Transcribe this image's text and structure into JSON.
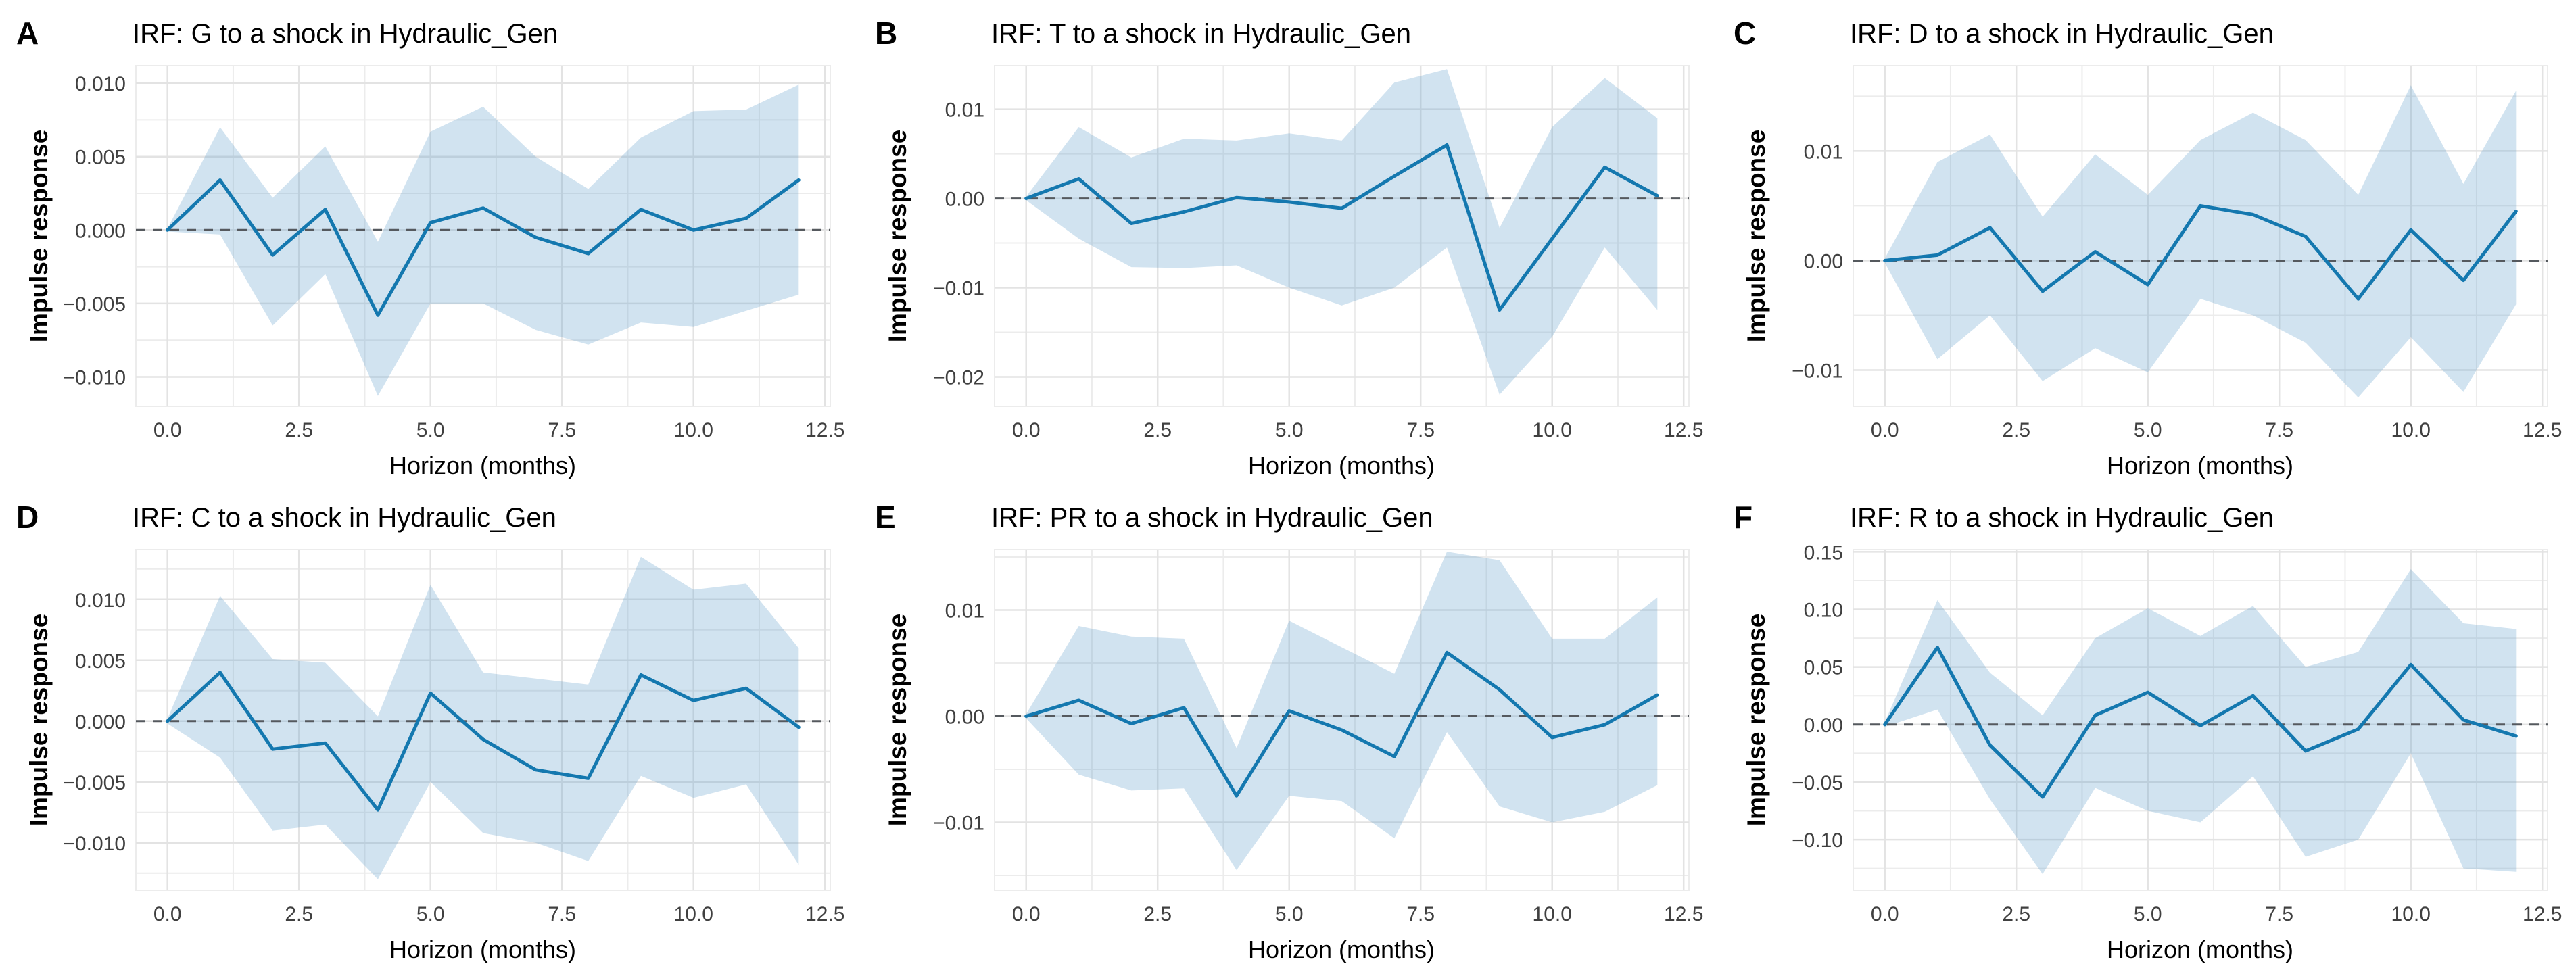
{
  "style": {
    "line_color": "#1478af",
    "line_width": 5,
    "band_color": "#5b9bc8",
    "band_opacity": 0.28,
    "grid_major_color": "#e3e3e3",
    "grid_minor_color": "#ececec",
    "panel_edge_color": "#ececec",
    "zero_line_color": "#55595e",
    "zero_dash": "14 11",
    "tick_label_color": "#404040",
    "title_color": "#000000",
    "background": "#ffffff"
  },
  "chart_data": [
    {
      "type": "line",
      "panel_label": "A",
      "title": "IRF: G to a shock in Hydraulic_Gen",
      "xlabel": "Horizon (months)",
      "ylabel": "Impulse response",
      "legend": "none",
      "grid": true,
      "zero_line": true,
      "x": [
        0,
        1,
        2,
        3,
        4,
        5,
        6,
        7,
        8,
        9,
        10,
        11,
        12
      ],
      "line": [
        0.0,
        0.0034,
        -0.0017,
        0.0014,
        -0.0058,
        0.0005,
        0.0015,
        -0.0005,
        -0.0016,
        0.0014,
        0.0,
        0.0008,
        0.0034
      ],
      "band_upper": [
        0.0001,
        0.007,
        0.0022,
        0.0057,
        -0.0008,
        0.0067,
        0.0084,
        0.005,
        0.0028,
        0.0063,
        0.0081,
        0.0082,
        0.0099
      ],
      "band_lower": [
        -0.0001,
        -0.0003,
        -0.0065,
        -0.003,
        -0.0113,
        -0.005,
        -0.005,
        -0.0068,
        -0.0078,
        -0.0063,
        -0.0066,
        -0.0055,
        -0.0044
      ],
      "xlim": [
        -0.6,
        12.6
      ],
      "ylim": [
        -0.012,
        0.0112
      ],
      "x_ticks": {
        "values": [
          0,
          2.5,
          5,
          7.5,
          10,
          12.5
        ],
        "labels": [
          "0.0",
          "2.5",
          "5.0",
          "7.5",
          "10.0",
          "12.5"
        ]
      },
      "y_ticks": {
        "values": [
          0.01,
          0.005,
          0.0,
          -0.005,
          -0.01
        ],
        "labels": [
          "0.010",
          "0.005",
          "0.000",
          "−0.005",
          "−0.010"
        ]
      }
    },
    {
      "type": "line",
      "panel_label": "B",
      "title": "IRF: T to a shock in Hydraulic_Gen",
      "xlabel": "Horizon (months)",
      "ylabel": "Impulse response",
      "legend": "none",
      "grid": true,
      "zero_line": true,
      "x": [
        0,
        1,
        2,
        3,
        4,
        5,
        6,
        7,
        8,
        9,
        10,
        11,
        12
      ],
      "line": [
        0.0,
        0.0022,
        -0.0028,
        -0.0015,
        0.0001,
        -0.0004,
        -0.0011,
        0.0025,
        0.006,
        -0.0125,
        -0.0045,
        0.0035,
        0.0003
      ],
      "band_upper": [
        0.0002,
        0.008,
        0.0046,
        0.0067,
        0.0065,
        0.0073,
        0.0065,
        0.013,
        0.0145,
        -0.0033,
        0.008,
        0.0135,
        0.009
      ],
      "band_lower": [
        -0.0002,
        -0.0045,
        -0.0077,
        -0.0078,
        -0.0075,
        -0.01,
        -0.012,
        -0.01,
        -0.0055,
        -0.022,
        -0.0155,
        -0.0055,
        -0.0125
      ],
      "xlim": [
        -0.6,
        12.6
      ],
      "ylim": [
        -0.0233,
        0.0149
      ],
      "x_ticks": {
        "values": [
          0,
          2.5,
          5,
          7.5,
          10,
          12.5
        ],
        "labels": [
          "0.0",
          "2.5",
          "5.0",
          "7.5",
          "10.0",
          "12.5"
        ]
      },
      "y_ticks": {
        "values": [
          0.01,
          0.0,
          -0.01,
          -0.02
        ],
        "labels": [
          "0.01",
          "0.00",
          "−0.01",
          "−0.02"
        ]
      }
    },
    {
      "type": "line",
      "panel_label": "C",
      "title": "IRF: D to a shock in Hydraulic_Gen",
      "xlabel": "Horizon (months)",
      "ylabel": "Impulse response",
      "legend": "none",
      "grid": true,
      "zero_line": true,
      "x": [
        0,
        1,
        2,
        3,
        4,
        5,
        6,
        7,
        8,
        9,
        10,
        11,
        12
      ],
      "line": [
        0.0,
        0.0005,
        0.003,
        -0.0028,
        0.0008,
        -0.0022,
        0.005,
        0.0042,
        0.0022,
        -0.0035,
        0.0028,
        -0.0018,
        0.0045
      ],
      "band_upper": [
        0.0002,
        0.009,
        0.0115,
        0.004,
        0.0097,
        0.006,
        0.011,
        0.0135,
        0.011,
        0.006,
        0.016,
        0.007,
        0.0155
      ],
      "band_lower": [
        -0.0002,
        -0.009,
        -0.005,
        -0.011,
        -0.008,
        -0.0102,
        -0.0035,
        -0.005,
        -0.0075,
        -0.0125,
        -0.007,
        -0.012,
        -0.004
      ],
      "xlim": [
        -0.6,
        12.6
      ],
      "ylim": [
        -0.0133,
        0.0178
      ],
      "x_ticks": {
        "values": [
          0,
          2.5,
          5,
          7.5,
          10,
          12.5
        ],
        "labels": [
          "0.0",
          "2.5",
          "5.0",
          "7.5",
          "10.0",
          "12.5"
        ]
      },
      "y_ticks": {
        "values": [
          0.01,
          0.0,
          -0.01
        ],
        "labels": [
          "0.01",
          "0.00",
          "−0.01"
        ]
      }
    },
    {
      "type": "line",
      "panel_label": "D",
      "title": "IRF: C to a shock in Hydraulic_Gen",
      "xlabel": "Horizon (months)",
      "ylabel": "Impulse response",
      "legend": "none",
      "grid": true,
      "zero_line": true,
      "x": [
        0,
        1,
        2,
        3,
        4,
        5,
        6,
        7,
        8,
        9,
        10,
        11,
        12
      ],
      "line": [
        0.0,
        0.004,
        -0.0023,
        -0.0018,
        -0.0073,
        0.0023,
        -0.0015,
        -0.004,
        -0.0047,
        0.0038,
        0.0017,
        0.0027,
        -0.0005
      ],
      "band_upper": [
        0.0002,
        0.0103,
        0.0051,
        0.0048,
        0.0004,
        0.0112,
        0.004,
        0.0035,
        0.003,
        0.0135,
        0.0108,
        0.0113,
        0.006
      ],
      "band_lower": [
        -0.0002,
        -0.003,
        -0.009,
        -0.0085,
        -0.013,
        -0.005,
        -0.0092,
        -0.01,
        -0.0115,
        -0.0045,
        -0.0063,
        -0.0052,
        -0.0118
      ],
      "xlim": [
        -0.6,
        12.6
      ],
      "ylim": [
        -0.0139,
        0.0141
      ],
      "x_ticks": {
        "values": [
          0,
          2.5,
          5,
          7.5,
          10,
          12.5
        ],
        "labels": [
          "0.0",
          "2.5",
          "5.0",
          "7.5",
          "10.0",
          "12.5"
        ]
      },
      "y_ticks": {
        "values": [
          0.01,
          0.005,
          0.0,
          -0.005,
          -0.01
        ],
        "labels": [
          "0.010",
          "0.005",
          "0.000",
          "−0.005",
          "−0.010"
        ]
      }
    },
    {
      "type": "line",
      "panel_label": "E",
      "title": "IRF: PR to a shock in Hydraulic_Gen",
      "xlabel": "Horizon (months)",
      "ylabel": "Impulse response",
      "legend": "none",
      "grid": true,
      "zero_line": true,
      "x": [
        0,
        1,
        2,
        3,
        4,
        5,
        6,
        7,
        8,
        9,
        10,
        11,
        12
      ],
      "line": [
        0.0,
        0.0015,
        -0.0007,
        0.0008,
        -0.0075,
        0.0005,
        -0.0013,
        -0.0038,
        0.006,
        0.0025,
        -0.002,
        -0.0008,
        0.002
      ],
      "band_upper": [
        0.0002,
        0.0085,
        0.0075,
        0.0073,
        -0.003,
        0.009,
        0.0065,
        0.004,
        0.0155,
        0.0147,
        0.0073,
        0.0073,
        0.0112
      ],
      "band_lower": [
        -0.0002,
        -0.0055,
        -0.007,
        -0.0068,
        -0.0145,
        -0.0075,
        -0.008,
        -0.0115,
        -0.0015,
        -0.0085,
        -0.01,
        -0.009,
        -0.0065
      ],
      "xlim": [
        -0.6,
        12.6
      ],
      "ylim": [
        -0.0164,
        0.0157
      ],
      "x_ticks": {
        "values": [
          0,
          2.5,
          5,
          7.5,
          10,
          12.5
        ],
        "labels": [
          "0.0",
          "2.5",
          "5.0",
          "7.5",
          "10.0",
          "12.5"
        ]
      },
      "y_ticks": {
        "values": [
          0.01,
          0.0,
          -0.01
        ],
        "labels": [
          "0.01",
          "0.00",
          "−0.01"
        ]
      }
    },
    {
      "type": "line",
      "panel_label": "F",
      "title": "IRF: R to a shock in Hydraulic_Gen",
      "xlabel": "Horizon (months)",
      "ylabel": "Impulse response",
      "legend": "none",
      "grid": true,
      "zero_line": true,
      "x": [
        0,
        1,
        2,
        3,
        4,
        5,
        6,
        7,
        8,
        9,
        10,
        11,
        12
      ],
      "line": [
        0.0,
        0.067,
        -0.018,
        -0.063,
        0.008,
        0.028,
        -0.001,
        0.025,
        -0.023,
        -0.004,
        0.052,
        0.004,
        -0.01
      ],
      "band_upper": [
        0.002,
        0.108,
        0.045,
        0.008,
        0.075,
        0.101,
        0.077,
        0.103,
        0.05,
        0.063,
        0.135,
        0.088,
        0.083
      ],
      "band_lower": [
        -0.002,
        0.013,
        -0.065,
        -0.13,
        -0.055,
        -0.075,
        -0.085,
        -0.045,
        -0.115,
        -0.1,
        -0.025,
        -0.125,
        -0.128
      ],
      "xlim": [
        -0.6,
        12.6
      ],
      "ylim": [
        -0.144,
        0.152
      ],
      "x_ticks": {
        "values": [
          0,
          2.5,
          5,
          7.5,
          10,
          12.5
        ],
        "labels": [
          "0.0",
          "2.5",
          "5.0",
          "7.5",
          "10.0",
          "12.5"
        ]
      },
      "y_ticks": {
        "values": [
          0.15,
          0.1,
          0.05,
          0.0,
          -0.05,
          -0.1
        ],
        "labels": [
          "0.15",
          "0.10",
          "0.05",
          "0.00",
          "−0.05",
          "−0.10"
        ]
      }
    }
  ]
}
